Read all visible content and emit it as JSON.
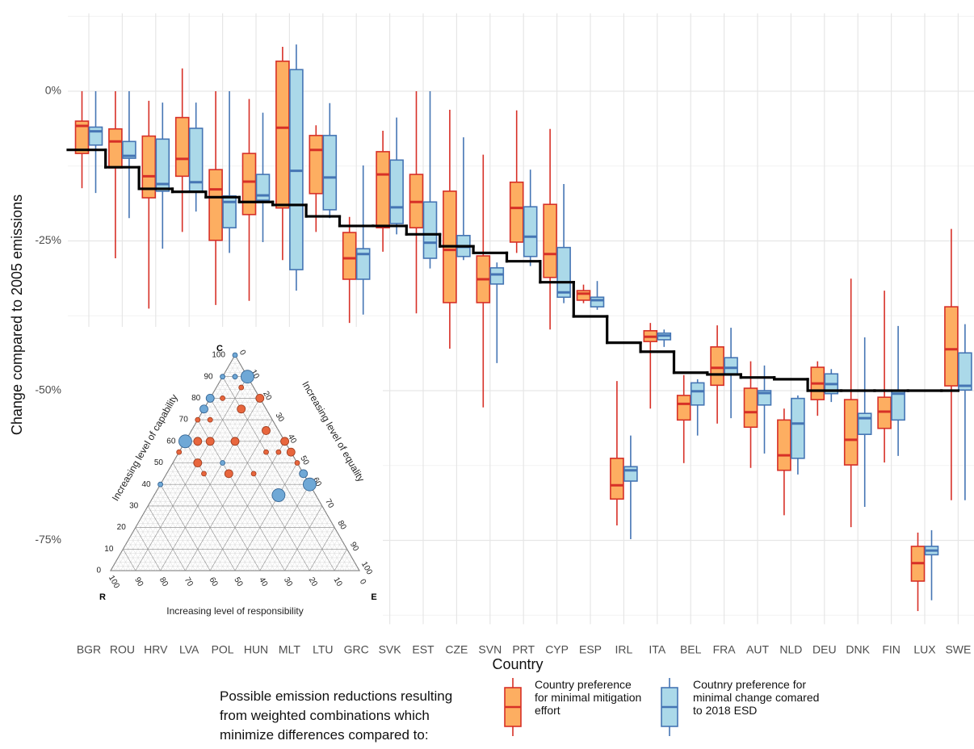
{
  "chart_data": [
    {
      "type": "box",
      "xlabel": "Country",
      "ylabel": "Change compared to 2005 emissions",
      "categories": [
        "BGR",
        "ROU",
        "HRV",
        "LVA",
        "POL",
        "HUN",
        "MLT",
        "LTU",
        "GRC",
        "SVK",
        "EST",
        "CZE",
        "SVN",
        "PRT",
        "CYP",
        "ESP",
        "IRL",
        "ITA",
        "BEL",
        "FRA",
        "AUT",
        "NLD",
        "DEU",
        "DNK",
        "FIN",
        "LUX",
        "SWE"
      ],
      "ylim": [
        -89,
        13
      ],
      "yticks": [
        {
          "value": 0,
          "label": "0%"
        },
        {
          "value": -25,
          "label": "-25%"
        },
        {
          "value": -50,
          "label": "-50%"
        },
        {
          "value": -75,
          "label": "-75%"
        }
      ],
      "grid": true,
      "series": [
        {
          "name": "Country preference for minimal mitigation effort",
          "color": "#fdae61",
          "edge_color": "#d73027",
          "low": [
            -16.2,
            -27.9,
            -36.3,
            -23.5,
            -35.7,
            -35,
            -28.2,
            -23.5,
            -38.7,
            -26.8,
            -37.1,
            -43,
            -52.8,
            -27,
            -39.8,
            -35.4,
            -72.5,
            -53,
            -62.1,
            -55.5,
            -62.9,
            -70.8,
            -54.2,
            -72.8,
            -62,
            -86.8,
            -68.3
          ],
          "q1": [
            -10.4,
            -12.8,
            -17.8,
            -14.2,
            -24.9,
            -20.6,
            -19.5,
            -17.1,
            -31.4,
            -22.8,
            -22.8,
            -35.3,
            -35.3,
            -25.2,
            -31.1,
            -34.9,
            -68.1,
            -41.8,
            -54.9,
            -49.1,
            -56.1,
            -63.3,
            -51.5,
            -62.4,
            -56.3,
            -81.8,
            -49.2
          ],
          "median": [
            -5.8,
            -8.4,
            -14.2,
            -11.3,
            -16.4,
            -15.1,
            -6.1,
            -9.8,
            -27.9,
            -13.9,
            -18.5,
            -26.5,
            -31.4,
            -19.5,
            -27.2,
            -33.8,
            -65.8,
            -41,
            -52.2,
            -46.2,
            -53.6,
            -60.8,
            -48.8,
            -58.2,
            -53.5,
            -78.8,
            -43.1
          ],
          "q3": [
            -5,
            -6.3,
            -7.5,
            -4.4,
            -13.1,
            -10.4,
            5,
            -7.4,
            -23.6,
            -10.1,
            -13.9,
            -16.7,
            -27.5,
            -15.2,
            -18.9,
            -33.3,
            -61.3,
            -40,
            -50.8,
            -42.7,
            -49.6,
            -54.9,
            -46.1,
            -51.5,
            -51.1,
            -76,
            -36
          ],
          "high": [
            0,
            0,
            -1.6,
            3.8,
            0,
            -1.3,
            7.4,
            -5.7,
            -21,
            -6.6,
            0,
            -3.1,
            -10.6,
            -3.2,
            -6.3,
            -32.3,
            -48.4,
            -38.7,
            -47.4,
            -39.1,
            -45.1,
            -53,
            -45.1,
            -31.3,
            -33.3,
            -73.7,
            -23
          ]
        },
        {
          "name": "Coutnry preference for minimal change comared to 2018 ESD",
          "color": "#abd9e9",
          "edge_color": "#4575b4",
          "low": [
            -17,
            -21.2,
            -26.3,
            -20.1,
            -27,
            -25.2,
            -33.3,
            -21.2,
            -37.3,
            -23.9,
            -29.6,
            -28.2,
            -45.4,
            -29.2,
            -35.4,
            -36.5,
            -74.8,
            -42.7,
            -57.5,
            -54.6,
            -60.5,
            -64,
            -51.9,
            -69.4,
            -60.9,
            -85,
            -68.3
          ],
          "q1": [
            -9,
            -11.2,
            -16.7,
            -16.8,
            -22.8,
            -18.2,
            -29.8,
            -19.8,
            -31.4,
            -22.1,
            -27.9,
            -27.6,
            -32.2,
            -27.6,
            -34.4,
            -36,
            -65.1,
            -41.5,
            -52.4,
            -47.2,
            -52.4,
            -61.3,
            -50.5,
            -57.3,
            -54.9,
            -77.4,
            -49.9
          ],
          "median": [
            -6.7,
            -10.8,
            -15.5,
            -15.2,
            -18.5,
            -17.4,
            -13.3,
            -14.4,
            -27.2,
            -19.4,
            -25.3,
            -26,
            -30.6,
            -24.3,
            -33.6,
            -34.9,
            -63.3,
            -40.8,
            -50.1,
            -46.2,
            -50.4,
            -55.5,
            -48.9,
            -54.6,
            -50.5,
            -76.7,
            -49.2
          ],
          "q3": [
            -6,
            -8.4,
            -8,
            -6.2,
            -17.5,
            -13.9,
            3.6,
            -7.4,
            -26.3,
            -11.5,
            -18.5,
            -24.1,
            -29.5,
            -19.3,
            -26.1,
            -34.4,
            -62.7,
            -40.4,
            -48.7,
            -44.5,
            -50,
            -51.3,
            -47.2,
            -53.8,
            -50.1,
            -76,
            -43.7
          ],
          "high": [
            0,
            0,
            -1.9,
            -1.9,
            0,
            -3.6,
            7.8,
            -2,
            -12.4,
            -4.4,
            0,
            -7.7,
            -28.6,
            -13.1,
            -15.5,
            -31.7,
            -57.5,
            -39.8,
            -48.1,
            -39.5,
            -45.8,
            -50.8,
            -46.4,
            -41.1,
            -39.2,
            -73.3,
            -38.9
          ]
        }
      ],
      "step_line": {
        "color": "#000000",
        "values": [
          -9.8,
          -12.7,
          -16.3,
          -16.8,
          -17.7,
          -18.5,
          -19,
          -20.9,
          -22.5,
          -22.5,
          -23.9,
          -25.9,
          -27,
          -28.4,
          -31.9,
          -37.6,
          -42,
          -43.5,
          -47,
          -47.3,
          -47.8,
          -48.1,
          -50,
          -50,
          -50,
          -50,
          -50
        ]
      },
      "legend": {
        "title_lines": [
          "Possible emission reductions resulting",
          "from weighted combinations which",
          "minimize differences compared to:"
        ]
      }
    },
    {
      "type": "ternary",
      "corners": {
        "top": "C",
        "left": "R",
        "right": "E"
      },
      "capability_label": "Increasing level of capability",
      "equality_label": "Increasing level of equality",
      "responsibility_label": "Increasing level of responsibility",
      "ticks": [
        0,
        10,
        20,
        30,
        40,
        50,
        60,
        70,
        80,
        90,
        100
      ],
      "series": [
        {
          "color": "#6fa8d6",
          "edge_color": "#2f5f8f",
          "capability": [
            100,
            90,
            90,
            90,
            80,
            75,
            60,
            50,
            45,
            40,
            40,
            35
          ],
          "equality": [
            0,
            0,
            5,
            10,
            0,
            0,
            0,
            20,
            55,
            60,
            0,
            50
          ],
          "responsibility": [
            0,
            10,
            5,
            0,
            20,
            25,
            40,
            30,
            0,
            0,
            60,
            15
          ],
          "size": [
            1,
            1,
            1,
            3,
            2,
            2,
            3,
            1,
            2,
            3,
            1,
            3
          ]
        },
        {
          "color": "#e8663d",
          "edge_color": "#9c3a1c",
          "capability": [
            85,
            80,
            80,
            75,
            70,
            70,
            65,
            60,
            60,
            60,
            60,
            55,
            55,
            55,
            55,
            50,
            50,
            45,
            45,
            45
          ],
          "equality": [
            10,
            20,
            5,
            15,
            0,
            5,
            30,
            5,
            10,
            20,
            40,
            35,
            45,
            40,
            0,
            10,
            50,
            15,
            25,
            35
          ],
          "responsibility": [
            5,
            0,
            15,
            10,
            30,
            25,
            5,
            35,
            30,
            20,
            0,
            10,
            0,
            5,
            45,
            40,
            0,
            40,
            30,
            20
          ],
          "size": [
            1,
            2,
            1,
            2,
            1,
            1,
            2,
            2,
            2,
            2,
            2,
            1,
            2,
            1,
            1,
            2,
            1,
            1,
            2,
            1
          ]
        }
      ]
    }
  ]
}
